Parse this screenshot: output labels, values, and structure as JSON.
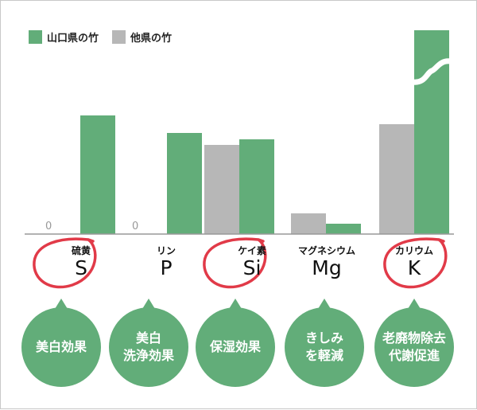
{
  "colors": {
    "yamaguchi": "#62ad79",
    "others": "#b7b7b7",
    "circle": "#e13a48",
    "axis": "#999999"
  },
  "legend": [
    {
      "label": "山口県の竹",
      "color": "#62ad79"
    },
    {
      "label": "他県の竹",
      "color": "#b7b7b7"
    }
  ],
  "chart_data": {
    "type": "bar",
    "categories": [
      "S",
      "P",
      "Si",
      "Mg",
      "K"
    ],
    "category_names": [
      "硫黄",
      "リン",
      "ケイ素",
      "マグネシウム",
      "カリウム"
    ],
    "series": [
      {
        "name": "他県の竹",
        "values": [
          0,
          0,
          112,
          26,
          138
        ],
        "zero_labels": [
          "0",
          "0",
          null,
          null,
          null
        ]
      },
      {
        "name": "山口県の竹",
        "values": [
          149,
          127,
          119,
          13,
          256
        ],
        "broken": [
          false,
          false,
          false,
          false,
          true
        ]
      }
    ],
    "circled": [
      true,
      false,
      true,
      false,
      true
    ]
  },
  "effects": [
    "美白効果",
    "美白\n洗浄効果",
    "保湿効果",
    "きしみ\nを軽減",
    "老廃物除去\n代謝促進"
  ]
}
